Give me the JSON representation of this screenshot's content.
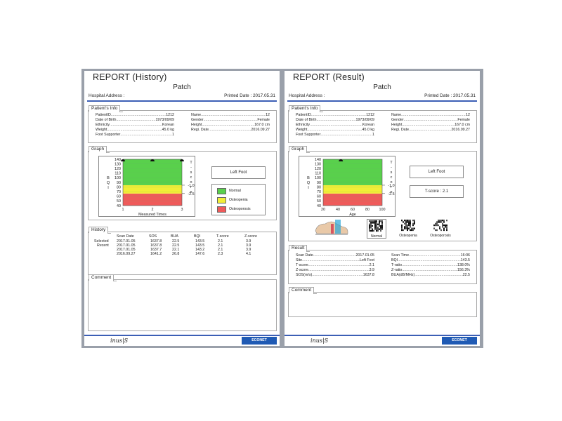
{
  "history": {
    "title": "REPORT (History)",
    "subtitle": "Patch",
    "hospital_address_label": "Hospital Address :",
    "printed_date": "Printed Date : 2017.05.31",
    "patient_info": {
      "tab": "Patient's Info",
      "left": [
        {
          "label": "PatientID",
          "value": "1212"
        },
        {
          "label": "Date of Birth",
          "value": "1973/09/09"
        },
        {
          "label": "Ethnicity",
          "value": "Korean"
        },
        {
          "label": "Weight",
          "value": "45.0 kg"
        },
        {
          "label": "Foot Supporter",
          "value": "1"
        }
      ],
      "right": [
        {
          "label": "Name",
          "value": "12"
        },
        {
          "label": "Gender",
          "value": "Female"
        },
        {
          "label": "Height",
          "value": "167.0 cm"
        },
        {
          "label": "Regi. Date",
          "value": "2016.09.27"
        }
      ]
    },
    "graph": {
      "tab": "Graph",
      "y_label": "BQI",
      "y_ticks": [
        "140",
        "130",
        "120",
        "110",
        "100",
        "90",
        "80",
        "70",
        "60",
        "50",
        "40"
      ],
      "x_ticks": [
        "1",
        "2",
        "3"
      ],
      "x_label": "Measured Times",
      "t_score_label": "T-score",
      "t_marks": [
        "-1.0",
        "-2.5"
      ],
      "foot_button": "Left Foot",
      "legend": [
        {
          "label": "Normal",
          "color": "#59d04c"
        },
        {
          "label": "Osteopenia",
          "color": "#f2ee37"
        },
        {
          "label": "Osteoporosis",
          "color": "#ef5a5a"
        }
      ]
    },
    "history_table": {
      "tab": "History",
      "headers": [
        "Scan Date",
        "SOS",
        "BUA",
        "BQI",
        "T-score",
        "Z-score"
      ],
      "row_labels": [
        "Selected",
        "Recent"
      ],
      "rows": [
        [
          "2017.01.05",
          "1637.8",
          "22.5",
          "143.5",
          "2.1",
          "3.9"
        ],
        [
          "2017.01.05",
          "1637.8",
          "22.5",
          "143.5",
          "2.1",
          "3.9"
        ],
        [
          "2017.01.05",
          "1637.7",
          "22.1",
          "143.2",
          "2.1",
          "3.9"
        ],
        [
          "2016.09.27",
          "1641.2",
          "26.8",
          "147.6",
          "2.3",
          "4.1"
        ]
      ]
    },
    "comment_tab": "Comment",
    "footer": {
      "logo": "inus|S",
      "brand": "ECONET"
    }
  },
  "result": {
    "title": "REPORT (Result)",
    "subtitle": "Patch",
    "hospital_address_label": "Hospital Address :",
    "printed_date": "Printed Date : 2017.05.31",
    "patient_info": {
      "tab": "Patient's Info",
      "left": [
        {
          "label": "PatientID",
          "value": "1212"
        },
        {
          "label": "Date of Birth",
          "value": "1973/09/09"
        },
        {
          "label": "Ethnicity",
          "value": "Korean"
        },
        {
          "label": "Weight",
          "value": "45.0 kg"
        },
        {
          "label": "Foot Supporter",
          "value": "1"
        }
      ],
      "right": [
        {
          "label": "Name",
          "value": "12"
        },
        {
          "label": "Gender",
          "value": "Female"
        },
        {
          "label": "Height",
          "value": "167.0 cm"
        },
        {
          "label": "Regi. Date",
          "value": "2016.09.27"
        }
      ]
    },
    "graph": {
      "tab": "Graph",
      "y_label": "BQI",
      "y_ticks": [
        "140",
        "130",
        "120",
        "110",
        "100",
        "90",
        "80",
        "70",
        "60",
        "50",
        "40"
      ],
      "x_ticks": [
        "20",
        "40",
        "60",
        "80",
        "100"
      ],
      "x_label": "Age",
      "t_score_label": "T-score",
      "t_marks": [
        "-1.0",
        "-2.5"
      ],
      "foot_button": "Left Foot",
      "t_score_box": "T-score : 2.1",
      "categories": [
        "Normal",
        "Osteopenia",
        "Osteoporosis"
      ]
    },
    "result_section": {
      "tab": "Result",
      "left": [
        {
          "label": "Scan Date",
          "value": "2017.01.05"
        },
        {
          "label": "Site",
          "value": "Left Foot"
        },
        {
          "label": "T-score",
          "value": "2.1"
        },
        {
          "label": "Z-score",
          "value": "3.9"
        },
        {
          "label": "SOS(m/s)",
          "value": "1637.8"
        }
      ],
      "right": [
        {
          "label": "Scan Time",
          "value": "16:06"
        },
        {
          "label": "BQI",
          "value": "143.5"
        },
        {
          "label": "T-ratio",
          "value": "138.0%"
        },
        {
          "label": "Z-ratio",
          "value": "156.3%"
        },
        {
          "label": "BUA(dB/MHz)",
          "value": "22.5"
        }
      ]
    },
    "comment_tab": "Comment",
    "footer": {
      "logo": "inus|S",
      "brand": "ECONET"
    }
  },
  "chart_data": [
    {
      "type": "scatter",
      "title": "",
      "xlabel": "Measured Times",
      "ylabel": "BQI",
      "x": [
        1,
        2,
        3
      ],
      "y": [
        147.6,
        143.2,
        143.5
      ],
      "xlim": [
        1,
        3
      ],
      "ylim": [
        40,
        140
      ],
      "bands": [
        {
          "name": "Osteoporosis",
          "from": 40,
          "to": 66,
          "color": "#ef5a5a"
        },
        {
          "name": "Osteopenia",
          "from": 66,
          "to": 84,
          "color": "#f2ee37"
        },
        {
          "name": "Normal",
          "from": 84,
          "to": 140,
          "color": "#59d04c"
        }
      ]
    },
    {
      "type": "scatter",
      "title": "",
      "xlabel": "Age",
      "ylabel": "BQI",
      "x": [
        44
      ],
      "y": [
        143.5
      ],
      "xlim": [
        20,
        100
      ],
      "ylim": [
        40,
        140
      ],
      "bands": [
        {
          "name": "Osteoporosis",
          "from": 40,
          "to": 66,
          "color": "#ef5a5a"
        },
        {
          "name": "Osteopenia",
          "from": 66,
          "to": 84,
          "color": "#f2ee37"
        },
        {
          "name": "Normal",
          "from": 84,
          "to": 140,
          "color": "#59d04c"
        }
      ]
    }
  ]
}
